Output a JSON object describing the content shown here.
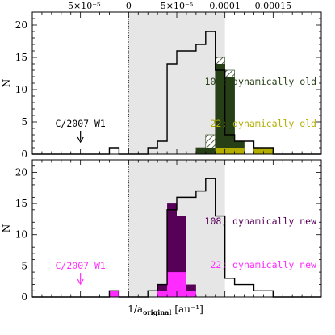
{
  "colors": {
    "grey_band": "#e6e6e6",
    "old_all": "#273f16",
    "old_22": "#b3ad00",
    "new_all": "#570057",
    "new_22": "#ff2bff",
    "outline": "#000000"
  },
  "chart_data": [
    {
      "type": "bar",
      "panel": "top",
      "xlabel": "",
      "ylabel": "N",
      "xlim": [
        -0.0001,
        0.0002
      ],
      "ylim": [
        0,
        22
      ],
      "top_tick_labels": [
        "−5×10⁻⁵",
        "0",
        "5×10⁻⁵",
        "0.0001",
        "0.00015"
      ],
      "top_tick_values": [
        -5e-05,
        0,
        5e-05,
        0.0001,
        0.00015
      ],
      "y_tick_labels": [
        "0",
        "5",
        "10",
        "15",
        "20"
      ],
      "y_tick_values": [
        0,
        5,
        10,
        15,
        20
      ],
      "shaded_range": [
        0,
        0.0001
      ],
      "dotted_line_x": 0,
      "bin_width": 1e-05,
      "bin_edges_start": -0.0001,
      "series": [
        {
          "name": "all",
          "style": "outline",
          "values": [
            0,
            0,
            0,
            0,
            0,
            0,
            0,
            0,
            1,
            0,
            0,
            0,
            1,
            2,
            14,
            16,
            16,
            17,
            19,
            13,
            3,
            2,
            2,
            1,
            1,
            0,
            0,
            0,
            0,
            0
          ]
        },
        {
          "name": "hatched",
          "style": "hatch",
          "values": [
            0,
            0,
            0,
            0,
            0,
            0,
            0,
            0,
            0,
            0,
            0,
            0,
            0,
            0,
            0,
            0,
            0,
            1,
            3,
            15,
            13,
            2,
            0,
            1,
            1,
            0,
            0,
            0,
            0,
            0
          ]
        },
        {
          "name": "108; dynamically old",
          "style": "fill",
          "values": [
            0,
            0,
            0,
            0,
            0,
            0,
            0,
            0,
            0,
            0,
            0,
            0,
            0,
            0,
            0,
            0,
            0,
            1,
            1,
            14,
            12,
            2,
            0,
            1,
            1,
            0,
            0,
            0,
            0,
            0
          ]
        },
        {
          "name": "22; dynamically old",
          "style": "fill",
          "values": [
            0,
            0,
            0,
            0,
            0,
            0,
            0,
            0,
            0,
            0,
            0,
            0,
            0,
            0,
            0,
            0,
            0,
            0,
            0,
            1,
            1,
            1,
            0,
            1,
            1,
            0,
            0,
            0,
            0,
            0
          ]
        }
      ],
      "annotation": "C/2007 W1",
      "annotation_x": -5e-05
    },
    {
      "type": "bar",
      "panel": "bottom",
      "xlabel": "1/a",
      "xlabel_sub": "original",
      "xlabel_unit": "[au⁻¹]",
      "ylabel": "N",
      "xlim": [
        -0.0001,
        0.0002
      ],
      "ylim": [
        0,
        22
      ],
      "y_tick_labels": [
        "0",
        "5",
        "10",
        "15",
        "20"
      ],
      "y_tick_values": [
        0,
        5,
        10,
        15,
        20
      ],
      "shaded_range": [
        0,
        0.0001
      ],
      "dotted_line_x": 0,
      "bin_width": 1e-05,
      "bin_edges_start": -0.0001,
      "series": [
        {
          "name": "all",
          "style": "outline",
          "values": [
            0,
            0,
            0,
            0,
            0,
            0,
            0,
            0,
            1,
            0,
            0,
            0,
            1,
            2,
            14,
            16,
            16,
            17,
            19,
            13,
            3,
            2,
            2,
            1,
            1,
            0,
            0,
            0,
            0,
            0
          ]
        },
        {
          "name": "108; dynamically new",
          "style": "fill",
          "values": [
            0,
            0,
            0,
            0,
            0,
            0,
            0,
            0,
            1,
            0,
            0,
            0,
            0,
            2,
            15,
            13,
            2,
            0,
            0,
            0,
            0,
            0,
            0,
            0,
            0,
            0,
            0,
            0,
            0,
            0
          ]
        },
        {
          "name": "22; dynamically new",
          "style": "fill",
          "values": [
            0,
            0,
            0,
            0,
            0,
            0,
            0,
            0,
            1,
            0,
            0,
            0,
            0,
            1,
            4,
            4,
            1,
            0,
            0,
            0,
            0,
            0,
            0,
            0,
            0,
            0,
            0,
            0,
            0,
            0
          ]
        }
      ],
      "annotation": "C/2007 W1",
      "annotation_x": -5e-05
    }
  ]
}
